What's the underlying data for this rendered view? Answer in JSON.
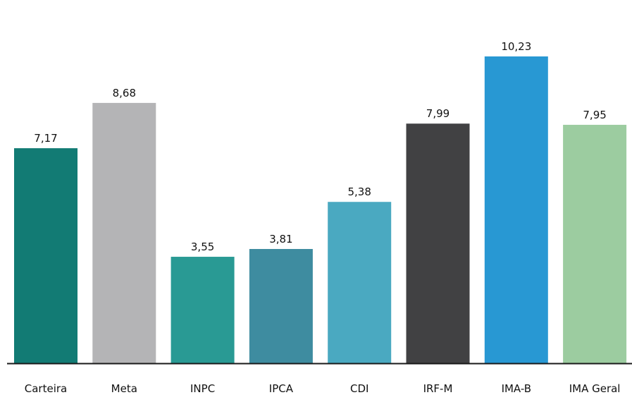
{
  "chart_data": {
    "type": "bar",
    "title": "",
    "xlabel": "",
    "ylabel": "",
    "ylim": [
      0,
      10.88
    ],
    "grid": false,
    "categories": [
      "Carteira",
      "Meta",
      "INPC",
      "IPCA",
      "CDI",
      "IRF-M",
      "IMA-B",
      "IMA Geral"
    ],
    "values": [
      7.17,
      8.68,
      3.55,
      3.81,
      5.38,
      7.99,
      10.23,
      7.95
    ],
    "value_labels": [
      "7,17",
      "8,68",
      "3,55",
      "3,81",
      "5,38",
      "7,99",
      "10,23",
      "7,95"
    ],
    "colors": [
      "#127b74",
      "#b4b4b6",
      "#299a94",
      "#3e8ca0",
      "#4aa9c1",
      "#414143",
      "#2898d3",
      "#9ccca0"
    ]
  }
}
